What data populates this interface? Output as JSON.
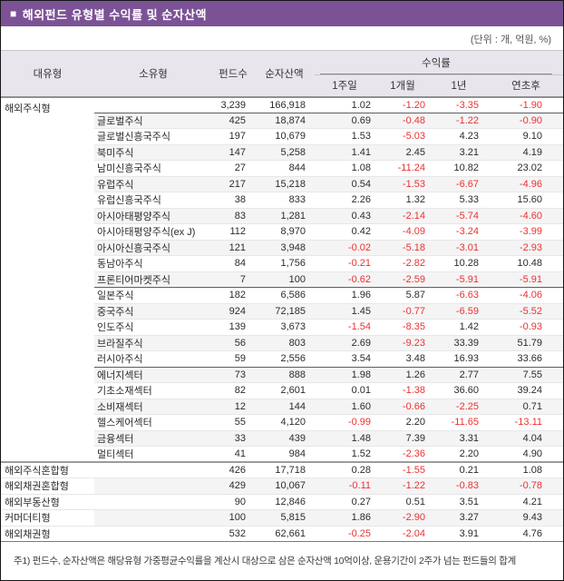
{
  "title": "해외펀드 유형별 수익률 및 순자산액",
  "title_bullet": "■",
  "unit_note": "(단위 : 개, 억원, %)",
  "colors": {
    "title_bar_bg": "#7c5296",
    "title_text": "#ffffff",
    "header_bg": "#e9e5ed",
    "stripe_bg": "#f4f4f5",
    "negative_value": "#ea3231",
    "body_text": "#2b2b2b"
  },
  "table": {
    "headers": {
      "major_type": "대유형",
      "minor_type": "소유형",
      "fund_count": "펀드수",
      "net_assets": "순자산액",
      "returns_group": "수익률",
      "returns": [
        "1주일",
        "1개월",
        "1년",
        "연초후"
      ]
    },
    "rows": [
      {
        "major": "해외주식형",
        "minor": "",
        "values": [
          "3,239",
          "166,918",
          "1.02",
          "-1.20",
          "-3.35",
          "-1.90"
        ],
        "stripe": false,
        "divider": "none"
      },
      {
        "major": "",
        "minor": "글로벌주식",
        "values": [
          "425",
          "18,874",
          "0.69",
          "-0.48",
          "-1.22",
          "-0.90"
        ],
        "stripe": true,
        "divider": "dark"
      },
      {
        "major": "",
        "minor": "글로벌신흥국주식",
        "values": [
          "197",
          "10,679",
          "1.53",
          "-5.03",
          "4.23",
          "9.10"
        ],
        "stripe": false,
        "divider": "light"
      },
      {
        "major": "",
        "minor": "북미주식",
        "values": [
          "147",
          "5,258",
          "1.41",
          "2.45",
          "3.21",
          "4.19"
        ],
        "stripe": true,
        "divider": "light"
      },
      {
        "major": "",
        "minor": "남미신흥국주식",
        "values": [
          "27",
          "844",
          "1.08",
          "-11.24",
          "10.82",
          "23.02"
        ],
        "stripe": false,
        "divider": "light"
      },
      {
        "major": "",
        "minor": "유럽주식",
        "values": [
          "217",
          "15,218",
          "0.54",
          "-1.53",
          "-6.67",
          "-4.96"
        ],
        "stripe": true,
        "divider": "light"
      },
      {
        "major": "",
        "minor": "유럽신흥국주식",
        "values": [
          "38",
          "833",
          "2.26",
          "1.32",
          "5.33",
          "15.60"
        ],
        "stripe": false,
        "divider": "light"
      },
      {
        "major": "",
        "minor": "아시아태평양주식",
        "values": [
          "83",
          "1,281",
          "0.43",
          "-2.14",
          "-5.74",
          "-4.60"
        ],
        "stripe": true,
        "divider": "light"
      },
      {
        "major": "",
        "minor": "아시아태평양주식(ex J)",
        "values": [
          "112",
          "8,970",
          "0.42",
          "-4.09",
          "-3.24",
          "-3.99"
        ],
        "stripe": false,
        "divider": "light"
      },
      {
        "major": "",
        "minor": "아시아신흥국주식",
        "values": [
          "121",
          "3,948",
          "-0.02",
          "-5.18",
          "-3.01",
          "-2.93"
        ],
        "stripe": true,
        "divider": "light"
      },
      {
        "major": "",
        "minor": "동남아주식",
        "values": [
          "84",
          "1,756",
          "-0.21",
          "-2.82",
          "10.28",
          "10.48"
        ],
        "stripe": false,
        "divider": "light"
      },
      {
        "major": "",
        "minor": "프론티어마켓주식",
        "values": [
          "7",
          "100",
          "-0.62",
          "-2.59",
          "-5.91",
          "-5.91"
        ],
        "stripe": true,
        "divider": "light"
      },
      {
        "major": "",
        "minor": "일본주식",
        "values": [
          "182",
          "6,586",
          "1.96",
          "5.87",
          "-6.63",
          "-4.06"
        ],
        "stripe": false,
        "divider": "dark"
      },
      {
        "major": "",
        "minor": "중국주식",
        "values": [
          "924",
          "72,185",
          "1.45",
          "-0.77",
          "-6.59",
          "-5.52"
        ],
        "stripe": true,
        "divider": "light"
      },
      {
        "major": "",
        "minor": "인도주식",
        "values": [
          "139",
          "3,673",
          "-1.54",
          "-8.35",
          "1.42",
          "-0.93"
        ],
        "stripe": false,
        "divider": "light"
      },
      {
        "major": "",
        "minor": "브라질주식",
        "values": [
          "56",
          "803",
          "2.69",
          "-9.23",
          "33.39",
          "51.79"
        ],
        "stripe": true,
        "divider": "light"
      },
      {
        "major": "",
        "minor": "러시아주식",
        "values": [
          "59",
          "2,556",
          "3.54",
          "3.48",
          "16.93",
          "33.66"
        ],
        "stripe": false,
        "divider": "light"
      },
      {
        "major": "",
        "minor": "에너지섹터",
        "values": [
          "73",
          "888",
          "1.98",
          "1.26",
          "2.77",
          "7.55"
        ],
        "stripe": true,
        "divider": "dark"
      },
      {
        "major": "",
        "minor": "기초소재섹터",
        "values": [
          "82",
          "2,601",
          "0.01",
          "-1.38",
          "36.60",
          "39.24"
        ],
        "stripe": false,
        "divider": "light"
      },
      {
        "major": "",
        "minor": "소비재섹터",
        "values": [
          "12",
          "144",
          "1.60",
          "-0.66",
          "-2.25",
          "0.71"
        ],
        "stripe": true,
        "divider": "light"
      },
      {
        "major": "",
        "minor": "헬스케어섹터",
        "values": [
          "55",
          "4,120",
          "-0.99",
          "2.20",
          "-11.65",
          "-13.11"
        ],
        "stripe": false,
        "divider": "light"
      },
      {
        "major": "",
        "minor": "금융섹터",
        "values": [
          "33",
          "439",
          "1.48",
          "7.39",
          "3.31",
          "4.04"
        ],
        "stripe": true,
        "divider": "light"
      },
      {
        "major": "",
        "minor": "멀티섹터",
        "values": [
          "41",
          "984",
          "1.52",
          "-2.36",
          "2.20",
          "4.90"
        ],
        "stripe": false,
        "divider": "light"
      },
      {
        "major": "해외주식혼합형",
        "minor": "",
        "values": [
          "426",
          "17,718",
          "0.28",
          "-1.55",
          "0.21",
          "1.08"
        ],
        "stripe": false,
        "divider": "section"
      },
      {
        "major": "해외채권혼합형",
        "minor": "",
        "values": [
          "429",
          "10,067",
          "-0.11",
          "-1.22",
          "-0.83",
          "-0.78"
        ],
        "stripe": true,
        "divider": "light"
      },
      {
        "major": "해외부동산형",
        "minor": "",
        "values": [
          "90",
          "12,846",
          "0.27",
          "0.51",
          "3.51",
          "4.21"
        ],
        "stripe": false,
        "divider": "light"
      },
      {
        "major": "커머더티형",
        "minor": "",
        "values": [
          "100",
          "5,815",
          "1.86",
          "-2.90",
          "3.27",
          "9.43"
        ],
        "stripe": true,
        "divider": "light"
      },
      {
        "major": "해외채권형",
        "minor": "",
        "values": [
          "532",
          "62,661",
          "-0.25",
          "-2.04",
          "3.91",
          "4.76"
        ],
        "stripe": false,
        "divider": "light"
      }
    ]
  },
  "footnote": "주1) 펀드수, 순자산액은 해당유형 가중평균수익률을 계산시 대상으로 삼은 순자산액 10억이상, 운용기간이 2주가 넘는 펀드들의 합계"
}
